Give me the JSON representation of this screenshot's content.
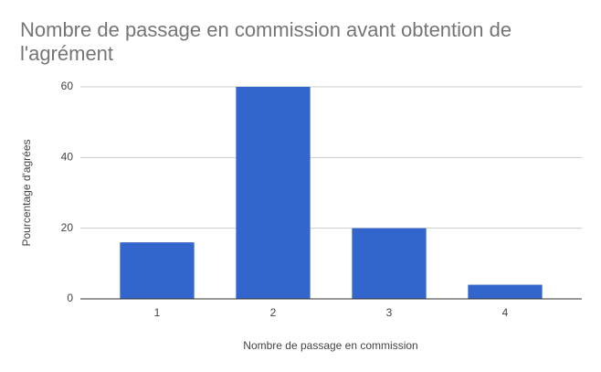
{
  "chart_data": {
    "type": "bar",
    "title": "Nombre de passage en commission avant obtention de l'agrément",
    "x_label": "Nombre de passage en commission",
    "y_label": "Pourcentage d'agrées",
    "categories": [
      "1",
      "2",
      "3",
      "4"
    ],
    "values": [
      16,
      60,
      20,
      4
    ],
    "color": "#3366cc",
    "ylim": [
      0,
      60
    ],
    "yticks": [
      0,
      20,
      40,
      60
    ],
    "grid": true
  }
}
